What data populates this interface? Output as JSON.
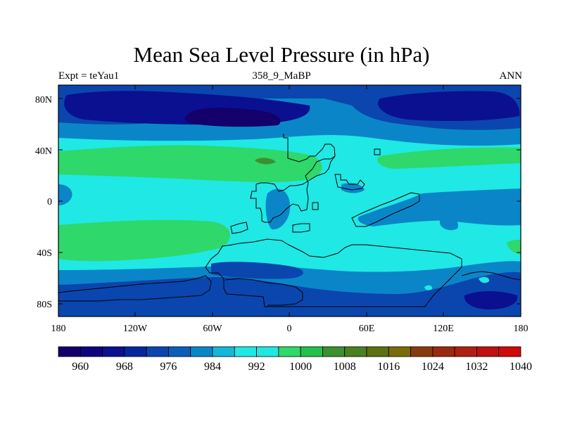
{
  "title": "Mean Sea Level Pressure (in hPa)",
  "subtitle_left": "Expt = teYau1",
  "subtitle_center": "358_9_MaBP",
  "subtitle_right": "ANN",
  "lat_labels": [
    "80N",
    "40N",
    "0",
    "40S",
    "80S"
  ],
  "lon_labels": [
    "180",
    "120W",
    "60W",
    "0",
    "60E",
    "120E",
    "180"
  ],
  "colorbar": {
    "labels": [
      "960",
      "968",
      "976",
      "984",
      "992",
      "1000",
      "1008",
      "1016",
      "1024",
      "1032",
      "1040"
    ],
    "colors": [
      "#13006b",
      "#0e047f",
      "#0a1090",
      "#0626a0",
      "#0b46ae",
      "#0b5fb8",
      "#0a86c8",
      "#15b7d8",
      "#20e8e4",
      "#20e8e0",
      "#2ed86a",
      "#23c04c",
      "#3c9030",
      "#4a8020",
      "#5c7010",
      "#7a6a0a",
      "#8a3a10",
      "#9a2a0e",
      "#b02010",
      "#c01010",
      "#d00a0a"
    ]
  },
  "map_colors": {
    "c984": "#0b46ae",
    "c976": "#0a1090",
    "c968": "#13006b",
    "c992": "#0a86c8",
    "c1000": "#20e8e4",
    "c1008": "#2ed86a",
    "c1016": "#3c9030",
    "c1024": "#5c7010"
  }
}
